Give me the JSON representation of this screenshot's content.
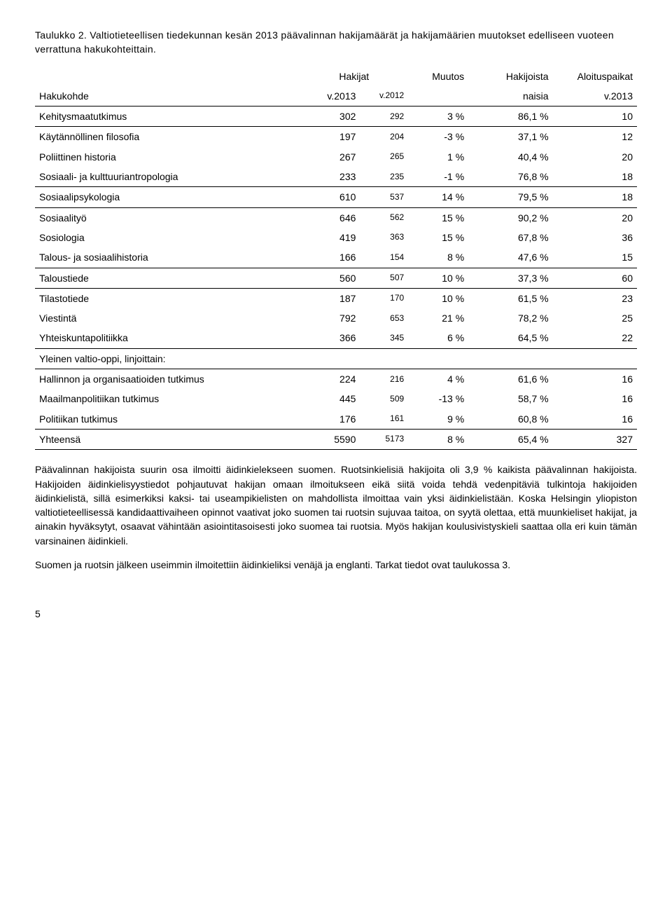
{
  "caption": "Taulukko 2. Valtiotieteellisen tiedekunnan kesän 2013 päävalinnan hakijamäärät ja hakijamäärien muutokset edelliseen vuoteen verrattuna hakukohteittain.",
  "headers": {
    "hakijat": "Hakijat",
    "muutos": "Muutos",
    "hakijoista": "Hakijoista",
    "aloituspaikat": "Aloituspaikat",
    "hakukohde": "Hakukohde",
    "v2013": "v.2013",
    "v2012": "v.2012",
    "naisia": "naisia",
    "v2013b": "v.2013"
  },
  "rows": [
    {
      "label": "Kehitysmaatutkimus",
      "c1": "302",
      "c2": "292",
      "c3": "3 %",
      "c4": "86,1 %",
      "c5": "10",
      "sep": true
    },
    {
      "label": "Käytännöllinen filosofia",
      "c1": "197",
      "c2": "204",
      "c3": "-3 %",
      "c4": "37,1 %",
      "c5": "12",
      "sep": false
    },
    {
      "label": "Poliittinen historia",
      "c1": "267",
      "c2": "265",
      "c3": "1 %",
      "c4": "40,4 %",
      "c5": "20",
      "sep": false
    },
    {
      "label": "Sosiaali- ja kulttuuriantropologia",
      "c1": "233",
      "c2": "235",
      "c3": "-1 %",
      "c4": "76,8 %",
      "c5": "18",
      "sep": true
    },
    {
      "label": "Sosiaalipsykologia",
      "c1": "610",
      "c2": "537",
      "c3": "14 %",
      "c4": "79,5 %",
      "c5": "18",
      "sep": true
    },
    {
      "label": "Sosiaalityö",
      "c1": "646",
      "c2": "562",
      "c3": "15 %",
      "c4": "90,2 %",
      "c5": "20",
      "sep": false
    },
    {
      "label": "Sosiologia",
      "c1": "419",
      "c2": "363",
      "c3": "15 %",
      "c4": "67,8 %",
      "c5": "36",
      "sep": false
    },
    {
      "label": "Talous- ja sosiaalihistoria",
      "c1": "166",
      "c2": "154",
      "c3": "8 %",
      "c4": "47,6 %",
      "c5": "15",
      "sep": true
    },
    {
      "label": "Taloustiede",
      "c1": "560",
      "c2": "507",
      "c3": "10 %",
      "c4": "37,3 %",
      "c5": "60",
      "sep": true
    },
    {
      "label": "Tilastotiede",
      "c1": "187",
      "c2": "170",
      "c3": "10 %",
      "c4": "61,5 %",
      "c5": "23",
      "sep": false
    },
    {
      "label": "Viestintä",
      "c1": "792",
      "c2": "653",
      "c3": "21 %",
      "c4": "78,2 %",
      "c5": "25",
      "sep": false
    },
    {
      "label": "Yhteiskuntapolitiikka",
      "c1": "366",
      "c2": "345",
      "c3": "6 %",
      "c4": "64,5 %",
      "c5": "22",
      "sep": true
    }
  ],
  "subheader": "Yleinen valtio-oppi, linjoittain:",
  "rows2": [
    {
      "label": "Hallinnon ja organisaatioiden tutkimus",
      "c1": "224",
      "c2": "216",
      "c3": "4 %",
      "c4": "61,6 %",
      "c5": "16"
    },
    {
      "label": "Maailmanpolitiikan tutkimus",
      "c1": "445",
      "c2": "509",
      "c3": "-13 %",
      "c4": "58,7 %",
      "c5": "16"
    },
    {
      "label": "Politiikan tutkimus",
      "c1": "176",
      "c2": "161",
      "c3": "9 %",
      "c4": "60,8 %",
      "c5": "16"
    }
  ],
  "total": {
    "label": "Yhteensä",
    "c1": "5590",
    "c2": "5173",
    "c3": "8 %",
    "c4": "65,4 %",
    "c5": "327"
  },
  "para1": "Päävalinnan hakijoista suurin osa ilmoitti äidinkielekseen suomen. Ruotsinkielisiä hakijoita oli 3,9 % kaikista päävalinnan hakijoista. Hakijoiden äidinkielisyystiedot pohjautuvat hakijan omaan ilmoitukseen eikä siitä voida tehdä vedenpitäviä tulkintoja hakijoiden äidinkielistä, sillä esimerkiksi kaksi- tai useampikielisten on mahdollista ilmoittaa vain yksi äidinkielistään. Koska Helsingin yliopiston valtiotieteellisessä kandidaattivaiheen opinnot vaativat joko suomen tai ruotsin sujuvaa taitoa, on syytä olettaa, että muunkieliset hakijat, ja ainakin hyväksytyt, osaavat vähintään asiointitasoisesti joko suomea tai ruotsia. Myös hakijan koulusivistyskieli saattaa olla eri kuin tämän varsinainen äidinkieli.",
  "para2": "Suomen ja ruotsin jälkeen useimmin ilmoitettiin äidinkieliksi venäjä ja englanti. Tarkat tiedot ovat taulukossa 3.",
  "pagenum": "5",
  "colwidths": {
    "c0": "44%",
    "c1": "10%",
    "c2": "8%",
    "c3": "10%",
    "c4": "14%",
    "c5": "14%"
  }
}
